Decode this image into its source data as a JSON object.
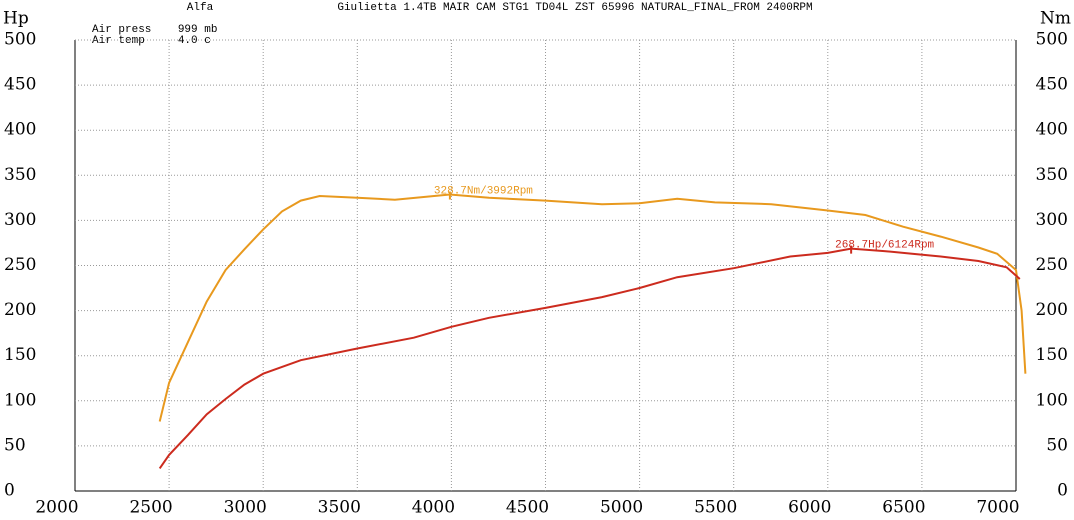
{
  "chart_data": {
    "type": "line",
    "header": {
      "make": "Alfa",
      "title": "Giulietta 1.4TB MAIR CAM STG1 TD04L ZST 65996 NATURAL_FINAL_FROM 2400RPM",
      "conditions": [
        "Air press    999 mb",
        "Air temp     4.0 c"
      ]
    },
    "y_label": "Hp",
    "y2_label": "Nm",
    "xlim": [
      2000,
      7000
    ],
    "xticks": [
      2000,
      2500,
      3000,
      3500,
      4000,
      4500,
      5000,
      5500,
      6000,
      6500,
      7000
    ],
    "ylim": [
      0,
      500
    ],
    "yticks": [
      0,
      50,
      100,
      150,
      200,
      250,
      300,
      350,
      400,
      450,
      500
    ],
    "y2lim": [
      0,
      500
    ],
    "y2ticks": [
      0,
      50,
      100,
      150,
      200,
      250,
      300,
      350,
      400,
      450,
      500
    ],
    "grid": true,
    "series": [
      {
        "name": "Nm",
        "color": "#e8991e",
        "axis": "y2",
        "x": [
          2450,
          2500,
          2600,
          2700,
          2800,
          2900,
          3000,
          3100,
          3200,
          3300,
          3500,
          3700,
          3992,
          4200,
          4500,
          4800,
          5000,
          5200,
          5400,
          5700,
          6000,
          6200,
          6400,
          6600,
          6800,
          6900,
          7000,
          7030,
          7050
        ],
        "values": [
          77,
          120,
          165,
          210,
          245,
          268,
          290,
          310,
          322,
          327,
          325,
          323,
          328.7,
          325,
          322,
          318,
          319,
          324,
          320,
          318,
          311,
          306,
          293,
          282,
          270,
          263,
          245,
          200,
          130
        ]
      },
      {
        "name": "Hp",
        "color": "#cc2b1e",
        "x": [
          2450,
          2500,
          2600,
          2700,
          2800,
          2900,
          3000,
          3200,
          3500,
          3800,
          4000,
          4200,
          4500,
          4800,
          5000,
          5200,
          5500,
          5800,
          6000,
          6124,
          6300,
          6600,
          6800,
          6950,
          7020
        ],
        "values": [
          25,
          40,
          62,
          85,
          102,
          118,
          130,
          145,
          158,
          170,
          182,
          192,
          203,
          215,
          225,
          237,
          247,
          260,
          264,
          268.7,
          266,
          260,
          255,
          248,
          235
        ]
      }
    ],
    "annotations": [
      {
        "text": "328.7Nm/3992Rpm",
        "x": 3992,
        "y": 328.7,
        "color": "#e8991e"
      },
      {
        "text": "268.7Hp/6124Rpm",
        "x": 6124,
        "y": 268.7,
        "color": "#cc2b1e"
      }
    ]
  }
}
